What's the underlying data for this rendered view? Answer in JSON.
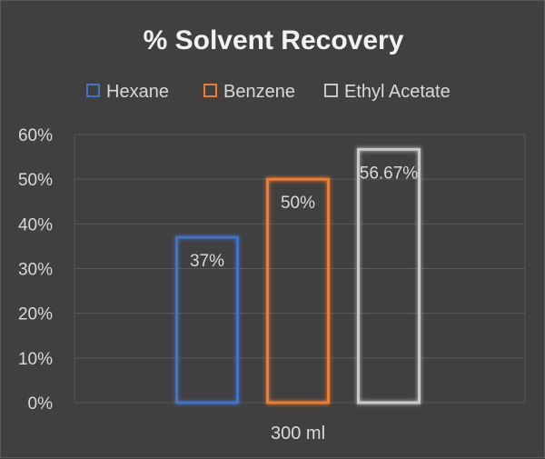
{
  "chart_data": {
    "type": "bar",
    "title": "% Solvent Recovery",
    "categories": [
      "300 ml"
    ],
    "series": [
      {
        "name": "Hexane",
        "values": [
          37
        ],
        "label": "37%",
        "color": "#4472c4"
      },
      {
        "name": "Benzene",
        "values": [
          50
        ],
        "label": "50%",
        "color": "#ed7d31"
      },
      {
        "name": "Ethyl Acetate",
        "values": [
          56.67
        ],
        "label": "56.67%",
        "color": "#c9c9c9"
      }
    ],
    "yticks": [
      "0%",
      "10%",
      "20%",
      "30%",
      "40%",
      "50%",
      "60%"
    ],
    "ylim": [
      0,
      60
    ],
    "xlabel": "",
    "ylabel": "",
    "grid": true,
    "legend_position": "top",
    "bar_style": "outline-glow",
    "colors": {
      "background": "#404040",
      "gridline": "#595959",
      "text": "#d9d9d9",
      "title": "#f2f2f2"
    }
  }
}
